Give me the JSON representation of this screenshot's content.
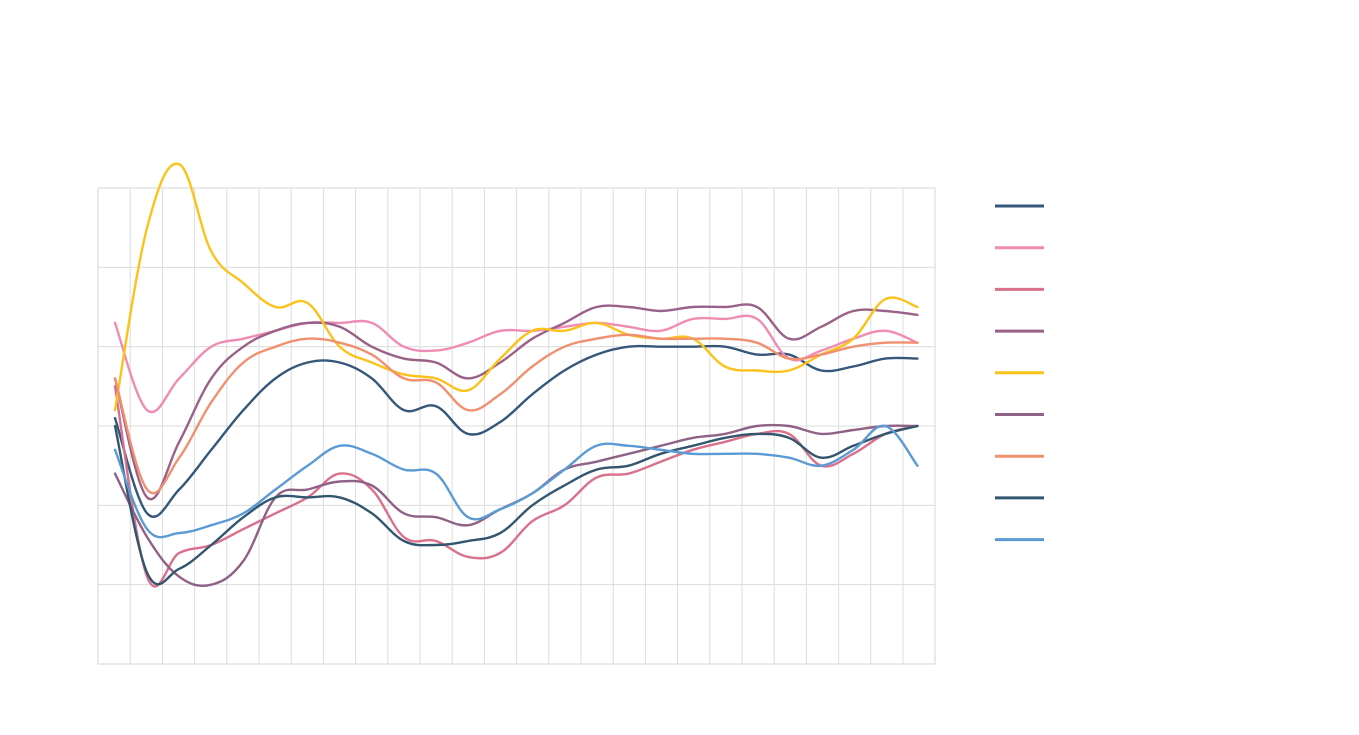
{
  "chart_data": {
    "type": "line",
    "title": "",
    "xlabel": "",
    "ylabel": "",
    "grid": true,
    "legend_position": "right",
    "x": [
      0,
      1,
      2,
      3,
      4,
      5,
      6,
      7,
      8,
      9,
      10,
      11,
      12,
      13,
      14,
      15,
      16,
      17,
      18,
      19,
      20,
      21,
      22,
      23,
      24,
      25
    ],
    "ylim": [
      -1,
      5
    ],
    "series": [
      {
        "color": "#34577a",
        "values": [
          2.1,
          0.9,
          1.2,
          1.7,
          2.2,
          2.6,
          2.8,
          2.8,
          2.6,
          2.2,
          2.25,
          1.9,
          2.05,
          2.4,
          2.7,
          2.9,
          3.0,
          3.0,
          3.0,
          3.0,
          2.9,
          2.9,
          2.7,
          2.75,
          2.85,
          2.85
        ]
      },
      {
        "color": "#f08cb4",
        "values": [
          3.3,
          2.2,
          2.6,
          3.0,
          3.1,
          3.2,
          3.3,
          3.3,
          3.3,
          3.0,
          2.95,
          3.05,
          3.2,
          3.2,
          3.25,
          3.3,
          3.25,
          3.2,
          3.35,
          3.35,
          3.35,
          2.85,
          2.95,
          3.1,
          3.2,
          3.05
        ]
      },
      {
        "color": "#d9708c",
        "values": [
          2.5,
          0.1,
          0.4,
          0.5,
          0.7,
          0.9,
          1.1,
          1.4,
          1.2,
          0.6,
          0.55,
          0.35,
          0.4,
          0.8,
          1.0,
          1.35,
          1.4,
          1.55,
          1.7,
          1.8,
          1.9,
          1.9,
          1.5,
          1.65,
          1.9,
          2.0
        ]
      },
      {
        "color": "#9a6188",
        "values": [
          2.6,
          1.1,
          1.8,
          2.6,
          3.0,
          3.2,
          3.3,
          3.25,
          3.0,
          2.85,
          2.8,
          2.6,
          2.8,
          3.1,
          3.3,
          3.5,
          3.5,
          3.45,
          3.5,
          3.5,
          3.5,
          3.1,
          3.25,
          3.45,
          3.45,
          3.4
        ]
      },
      {
        "color": "#fbc21c",
        "values": [
          2.2,
          4.5,
          5.3,
          4.2,
          3.8,
          3.5,
          3.55,
          3.0,
          2.8,
          2.65,
          2.6,
          2.45,
          2.85,
          3.2,
          3.2,
          3.3,
          3.15,
          3.1,
          3.1,
          2.75,
          2.7,
          2.7,
          2.9,
          3.1,
          3.6,
          3.5
        ]
      },
      {
        "color": "#8f6185",
        "values": [
          1.4,
          0.6,
          0.1,
          0.0,
          0.3,
          1.1,
          1.2,
          1.3,
          1.25,
          0.9,
          0.85,
          0.75,
          0.95,
          1.15,
          1.45,
          1.55,
          1.65,
          1.75,
          1.85,
          1.9,
          2.0,
          2.0,
          1.9,
          1.95,
          2.0,
          2.0
        ]
      },
      {
        "color": "#f09070",
        "values": [
          2.6,
          1.2,
          1.6,
          2.3,
          2.8,
          3.0,
          3.1,
          3.05,
          2.9,
          2.6,
          2.55,
          2.2,
          2.4,
          2.75,
          3.0,
          3.1,
          3.15,
          3.1,
          3.1,
          3.1,
          3.05,
          2.85,
          2.9,
          3.0,
          3.05,
          3.05
        ]
      },
      {
        "color": "#33566f",
        "values": [
          2.0,
          0.15,
          0.2,
          0.5,
          0.85,
          1.1,
          1.1,
          1.1,
          0.9,
          0.55,
          0.5,
          0.55,
          0.65,
          1.0,
          1.25,
          1.45,
          1.5,
          1.65,
          1.75,
          1.85,
          1.9,
          1.85,
          1.6,
          1.75,
          1.9,
          2.0
        ]
      },
      {
        "color": "#5b9bd5",
        "values": [
          1.7,
          0.7,
          0.65,
          0.75,
          0.9,
          1.2,
          1.5,
          1.75,
          1.65,
          1.45,
          1.4,
          0.85,
          0.95,
          1.15,
          1.45,
          1.75,
          1.75,
          1.7,
          1.65,
          1.65,
          1.65,
          1.6,
          1.5,
          1.7,
          2.0,
          1.5
        ]
      }
    ]
  }
}
